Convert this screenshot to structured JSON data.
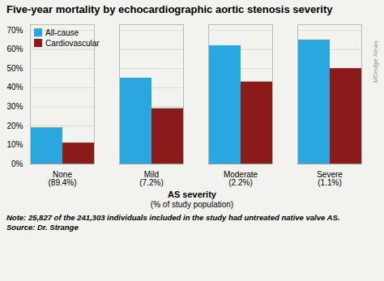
{
  "chart_data": {
    "type": "bar",
    "title": "Five-year mortality by echocardiographic aortic stenosis severity",
    "categories": [
      "None\n(89.4%)",
      "Mild\n(7.2%)",
      "Moderate\n(2.2%)",
      "Severe\n(1.1%)"
    ],
    "series": [
      {
        "name": "All-cause",
        "color": "#29a8e0",
        "values": [
          19,
          45,
          62,
          65
        ]
      },
      {
        "name": "Cardiovascular",
        "color": "#8b1a1a",
        "values": [
          11,
          29,
          43,
          50
        ]
      }
    ],
    "xlabel": [
      "AS severity",
      "(% of study population)"
    ],
    "ylim": [
      0,
      73
    ],
    "yticks": [
      {
        "value": 0,
        "label": "0%"
      },
      {
        "value": 10,
        "label": "10%"
      },
      {
        "value": 20,
        "label": "20%"
      },
      {
        "value": 30,
        "label": "30%"
      },
      {
        "value": 40,
        "label": "40%"
      },
      {
        "value": 50,
        "label": "50%"
      },
      {
        "value": 60,
        "label": "60%"
      },
      {
        "value": 70,
        "label": "70%"
      }
    ],
    "grid": true,
    "legend": "upper left",
    "note": "Note: 25,827 of the 241,303 individuals included in the study had untreated native valve AS.",
    "source": "Source: Dr. Strange",
    "watermark": "MDedge News",
    "background_color": "#f2f2ee"
  }
}
